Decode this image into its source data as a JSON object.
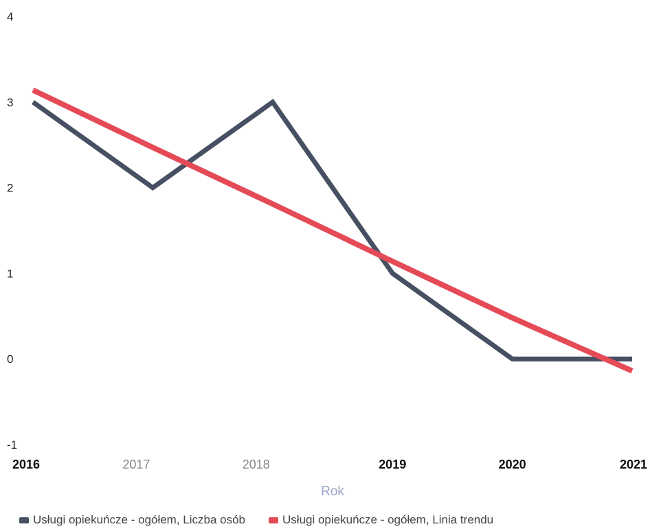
{
  "chart_data": {
    "type": "line",
    "x": [
      "2016",
      "2017",
      "2018",
      "2019",
      "2020",
      "2021"
    ],
    "x_tick_bold": [
      true,
      false,
      false,
      true,
      true,
      true
    ],
    "series": [
      {
        "name": "Usługi opiekuńcze - ogółem, Liczba osób",
        "values": [
          3,
          2,
          3,
          1,
          0,
          0
        ],
        "color": "#474f63"
      },
      {
        "name": "Usługi opiekuńcze - ogółem, Linia trendu",
        "values": [
          3.14,
          2.47,
          1.81,
          1.14,
          0.48,
          -0.14
        ],
        "color": "#e54a57"
      }
    ],
    "yticks": [
      "4",
      "3",
      "2",
      "1",
      "0",
      "-1"
    ],
    "ylim": [
      -1,
      4
    ],
    "xlabel": "Rok",
    "ylabel": "",
    "grid": false,
    "legend_position": "bottom-left"
  }
}
